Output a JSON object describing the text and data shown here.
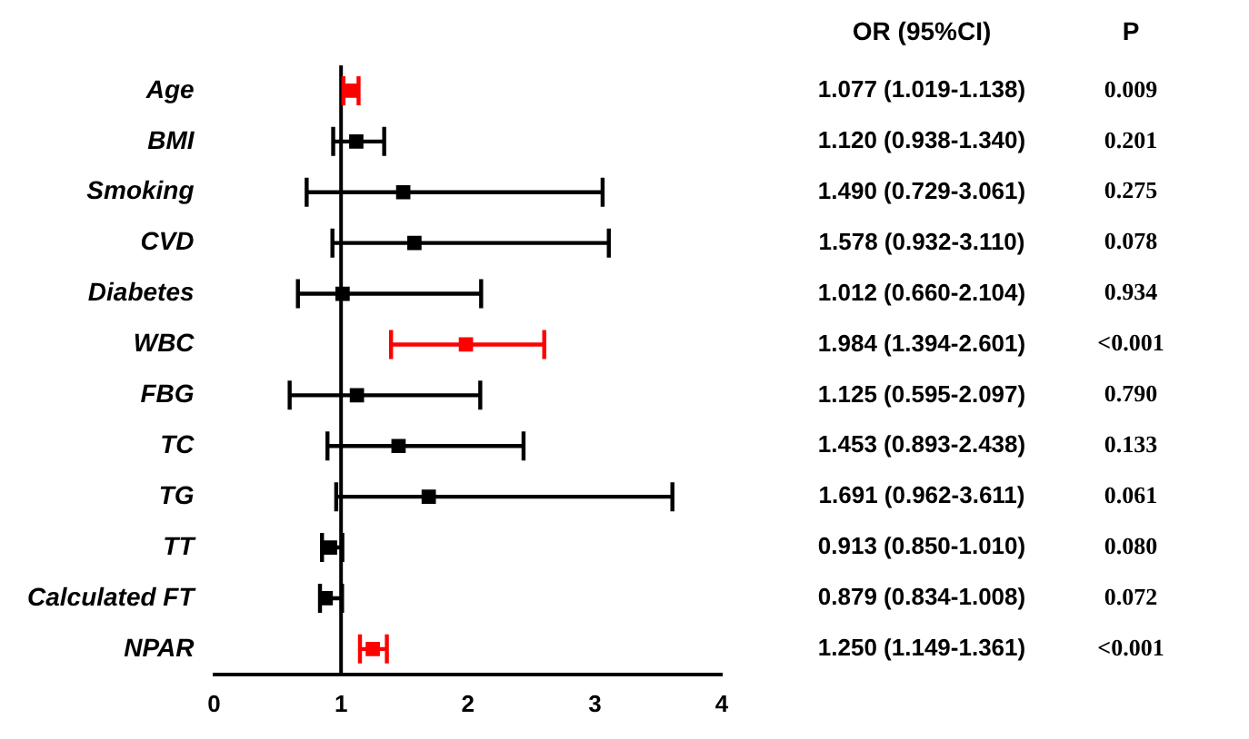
{
  "chart_data": {
    "type": "scatter",
    "orientation": "horizontal",
    "categories": [
      "Age",
      "BMI",
      "Smoking",
      "CVD",
      "Diabetes",
      "WBC",
      "FBG",
      "TC",
      "TG",
      "TT",
      "Calculated FT",
      "NPAR"
    ],
    "values": [
      1.077,
      1.12,
      1.49,
      1.578,
      1.012,
      1.984,
      1.125,
      1.453,
      1.691,
      0.913,
      0.879,
      1.25
    ],
    "errors": [
      [
        1.019,
        1.138
      ],
      [
        0.938,
        1.34
      ],
      [
        0.729,
        3.061
      ],
      [
        0.932,
        3.11
      ],
      [
        0.66,
        2.104
      ],
      [
        1.394,
        2.601
      ],
      [
        0.595,
        2.097
      ],
      [
        0.893,
        2.438
      ],
      [
        0.962,
        3.611
      ],
      [
        0.85,
        1.01
      ],
      [
        0.834,
        1.008
      ],
      [
        1.149,
        1.361
      ]
    ],
    "colors": [
      "#ff0000",
      "#000000",
      "#000000",
      "#000000",
      "#000000",
      "#ff0000",
      "#000000",
      "#000000",
      "#000000",
      "#000000",
      "#000000",
      "#ff0000"
    ],
    "value_labels": [
      "1.077 (1.019-1.138)",
      "1.120 (0.938-1.340)",
      "1.490 (0.729-3.061)",
      "1.578 (0.932-3.110)",
      "1.012 (0.660-2.104)",
      "1.984 (1.394-2.601)",
      "1.125 (0.595-2.097)",
      "1.453 (0.893-2.438)",
      "1.691 (0.962-3.611)",
      "0.913 (0.850-1.010)",
      "0.879 (0.834-1.008)",
      "1.250 (1.149-1.361)"
    ],
    "annotations": [
      "OR (95%CI)",
      "P",
      "0.009",
      "0.201",
      "0.275",
      "0.078",
      "0.934",
      "<0.001",
      "0.790",
      "0.133",
      "0.061",
      "0.080",
      "0.072",
      "<0.001"
    ],
    "ref_lines": [
      {
        "axis": "x",
        "value": 1,
        "color": "#000000"
      }
    ],
    "xlim": [
      0,
      4
    ],
    "xticks": [
      0,
      1,
      2,
      3,
      4
    ],
    "marker": "square",
    "grid": false,
    "legend": false
  }
}
